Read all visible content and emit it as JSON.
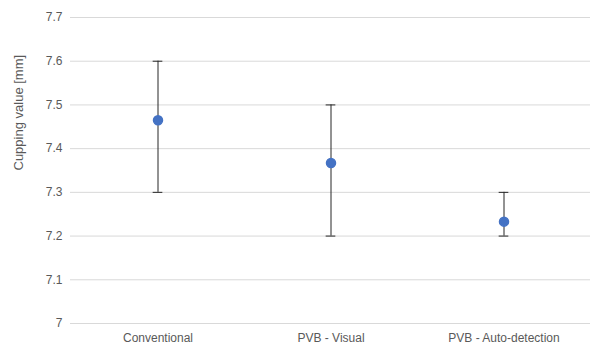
{
  "chart_data": {
    "type": "scatter",
    "y_label": "Cupping value [mm]",
    "categories": [
      "Conventional",
      "PVB - Visual",
      "PVB - Auto-detection"
    ],
    "values": [
      7.465,
      7.367,
      7.233
    ],
    "error_bars": {
      "lower": [
        7.3,
        7.2,
        7.2
      ],
      "upper": [
        7.6,
        7.5,
        7.3
      ]
    },
    "color": "#4472c4",
    "marker": "circle",
    "ylim": [
      7,
      7.7
    ],
    "yticks": [
      7,
      7.1,
      7.2,
      7.3,
      7.4,
      7.5,
      7.6,
      7.7
    ],
    "grid": true
  }
}
